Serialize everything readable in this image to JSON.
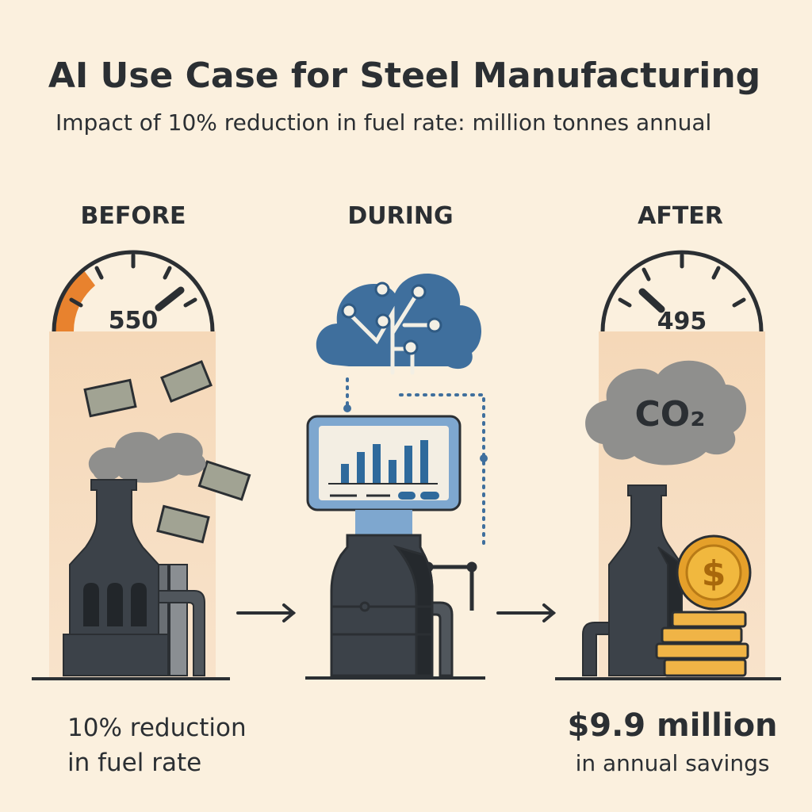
{
  "title": "AI Use Case for Steel Manufacturing",
  "subtitle": "Impact of 10% reduction in fuel rate: million tonnes annual",
  "stages": [
    {
      "label": "BEFORE",
      "gauge_value": 550
    },
    {
      "label": "DURING"
    },
    {
      "label": "AFTER",
      "gauge_value": 495,
      "cloud_label": "CO₂"
    }
  ],
  "captions": {
    "before": [
      "10% reduction",
      "in fuel rate"
    ],
    "after": [
      "$9.9 million",
      "in annual savings"
    ]
  }
}
